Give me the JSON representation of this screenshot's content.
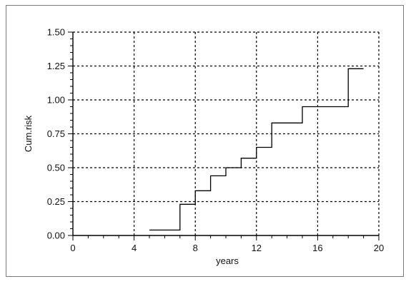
{
  "chart_data": {
    "type": "line",
    "step": true,
    "title": "",
    "xlabel": "years",
    "ylabel": "Cum.risk",
    "xlim": [
      0,
      20
    ],
    "ylim": [
      0,
      1.5
    ],
    "x_ticks": [
      0,
      4,
      8,
      12,
      16,
      20
    ],
    "x_tick_labels": [
      "0",
      "4",
      "8",
      "12",
      "16",
      "20"
    ],
    "y_ticks": [
      0,
      0.25,
      0.5,
      0.75,
      1.0,
      1.25,
      1.5
    ],
    "y_tick_labels": [
      "0.00",
      "0.25",
      "0.50",
      "0.75",
      "1.00",
      "1.25",
      "1.50"
    ],
    "grid": true,
    "grid_style": "dashed",
    "series": [
      {
        "x": [
          5,
          7,
          8,
          9,
          10,
          11,
          12,
          13,
          15,
          18,
          19
        ],
        "y": [
          0.04,
          0.23,
          0.33,
          0.44,
          0.5,
          0.57,
          0.65,
          0.83,
          0.95,
          1.23,
          1.23
        ]
      }
    ],
    "colors": {
      "line": "#000000",
      "grid": "#000000",
      "axis": "#000000"
    }
  }
}
